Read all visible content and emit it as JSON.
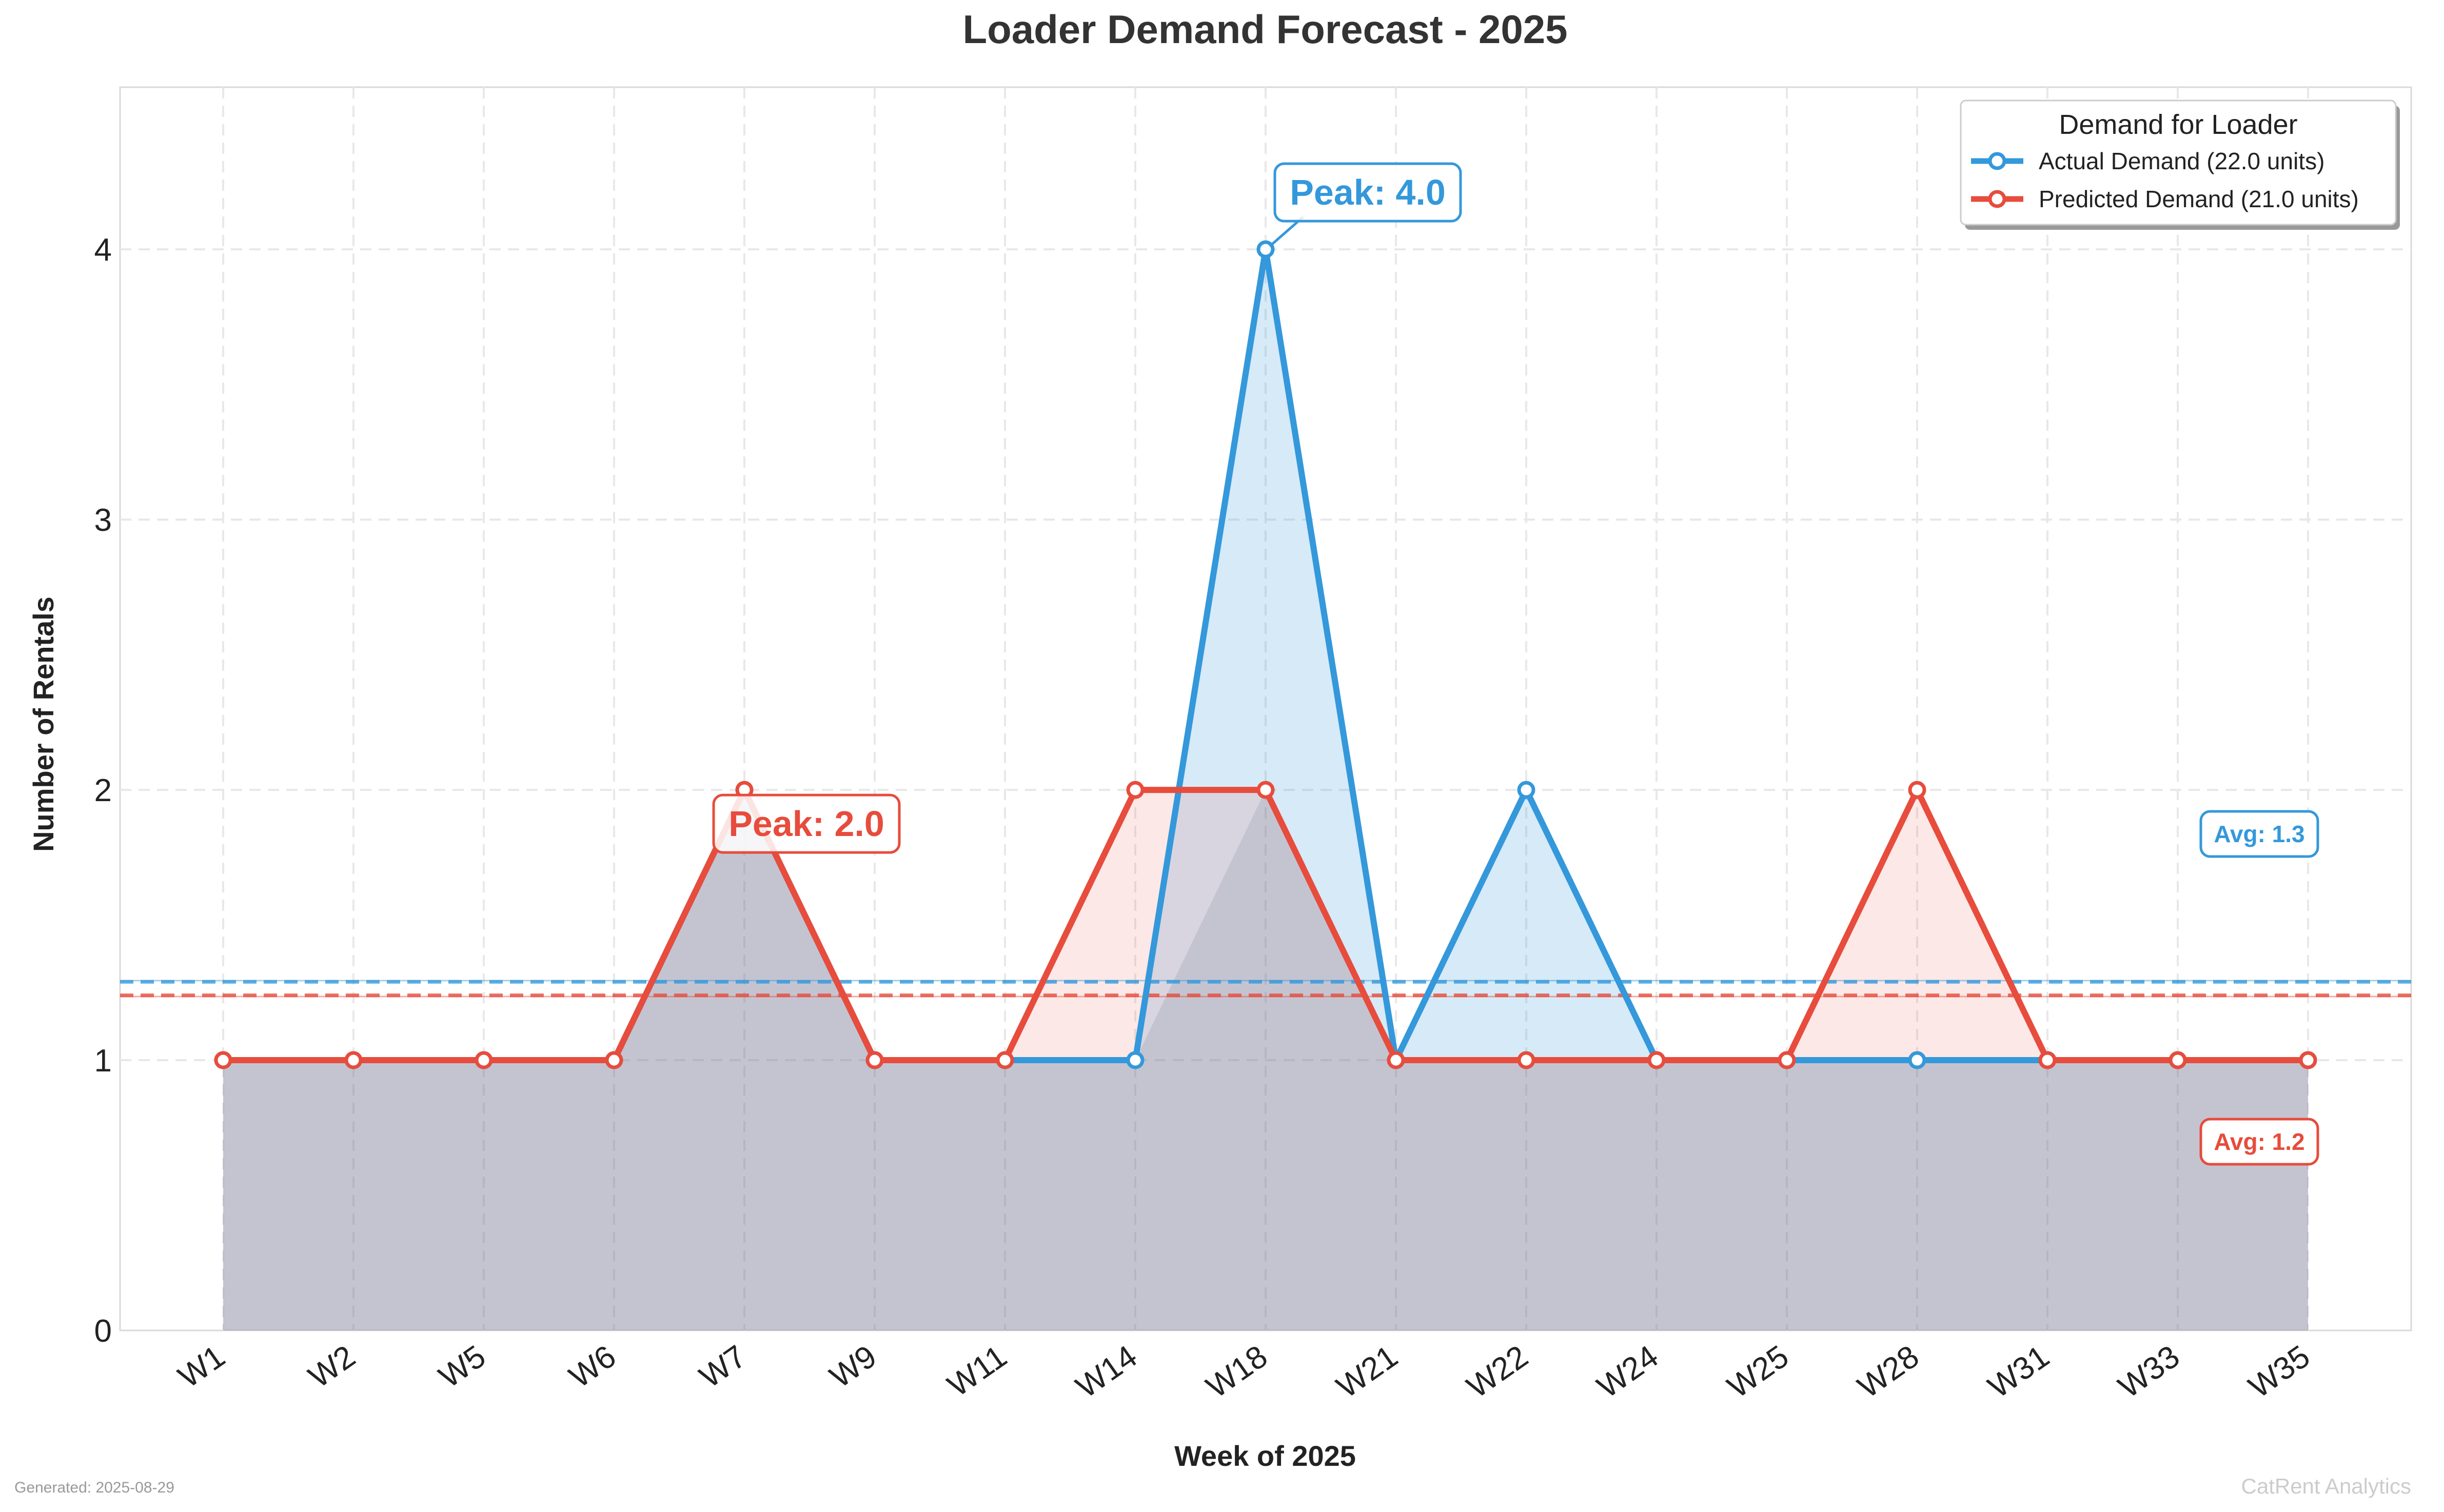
{
  "chart_data": {
    "type": "line",
    "title": "Loader Demand Forecast - 2025",
    "xlabel": "Week of 2025",
    "ylabel": "Number of Rentals",
    "categories": [
      "W1",
      "W2",
      "W5",
      "W6",
      "W7",
      "W9",
      "W11",
      "W14",
      "W18",
      "W21",
      "W22",
      "W24",
      "W25",
      "W28",
      "W31",
      "W33",
      "W35"
    ],
    "ylim": [
      0,
      4.6
    ],
    "yticks": [
      0,
      1,
      2,
      3,
      4
    ],
    "grid": true,
    "legend_title": "Demand for Loader",
    "legend_placement": "top-right",
    "series": [
      {
        "name": "Actual Demand (22.0 units)",
        "color": "#3498db",
        "values": [
          1,
          1,
          1,
          1,
          2,
          1,
          1,
          1,
          4,
          1,
          2,
          1,
          1,
          1,
          1,
          1,
          1
        ],
        "average": 1.29,
        "average_label": "Avg: 1.3",
        "peak_label": "Peak: 4.0",
        "peak_index": 8
      },
      {
        "name": "Predicted Demand (21.0 units)",
        "color": "#e74c3c",
        "values": [
          1,
          1,
          1,
          1,
          2,
          1,
          1,
          2,
          2,
          1,
          1,
          1,
          1,
          2,
          1,
          1,
          1
        ],
        "average": 1.24,
        "average_label": "Avg: 1.2",
        "peak_label": "Peak: 2.0",
        "peak_index": 4
      }
    ]
  },
  "footer": {
    "generated": "Generated: 2025-08-29",
    "brand": "CatRent Analytics"
  }
}
